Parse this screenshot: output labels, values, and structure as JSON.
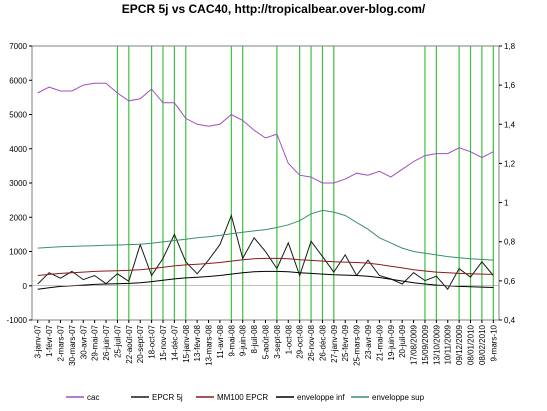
{
  "chart_data": {
    "type": "line",
    "title": "EPCR 5j vs CAC40, http://tropicalbear.over-blog.com/",
    "ylim": [
      -1000,
      7000
    ],
    "yticks": [
      -1000,
      0,
      1000,
      2000,
      3000,
      4000,
      5000,
      6000,
      7000
    ],
    "ytick_labels": [
      "-1000",
      "0",
      "1000",
      "2000",
      "3000",
      "4000",
      "5000",
      "6000",
      "7000"
    ],
    "y2lim": [
      0.4,
      1.8
    ],
    "y2ticks": [
      0.4,
      0.6,
      0.8,
      1.0,
      1.2,
      1.4,
      1.6,
      1.8
    ],
    "y2tick_labels": [
      "0,4",
      "0,6",
      "0,8",
      "1",
      "1,2",
      "1,4",
      "1,6",
      "1,8"
    ],
    "categories": [
      "3-janv-07",
      "1-févr-07",
      "2-mars-07",
      "30-mars-07",
      "30-avr-07",
      "29-mai-07",
      "26-juin-07",
      "25-juil-07",
      "22-août-07",
      "20-sept-07",
      "18-oct-07",
      "15-nov-07",
      "14-déc-07",
      "15-janv-08",
      "13-févr-08",
      "13-mars-08",
      "11-avr-08",
      "9-mai-08",
      "9-juin-08",
      "8-juil-08",
      "5-août-08",
      "3-sept-08",
      "1-oct-08",
      "29-oct-08",
      "26-nov-08",
      "26-déc-08",
      "27-janv-09",
      "25-févr-09",
      "25-mars-09",
      "23-avr-09",
      "21-mai-09",
      "19-juin-09",
      "20-juil-09",
      "17/08/2009",
      "15/09/2009",
      "13/10/2009",
      "10/11/2009",
      "09/12/2009",
      "08/01/2010",
      "08/02/2010",
      "9-mars-10"
    ],
    "series": [
      {
        "name": "cac",
        "axis": "y2",
        "color": "#a04fc0",
        "values": [
          1.56,
          1.59,
          1.57,
          1.57,
          1.6,
          1.61,
          1.61,
          1.56,
          1.52,
          1.53,
          1.58,
          1.51,
          1.51,
          1.43,
          1.4,
          1.39,
          1.4,
          1.45,
          1.42,
          1.37,
          1.33,
          1.35,
          1.2,
          1.14,
          1.13,
          1.1,
          1.1,
          1.12,
          1.15,
          1.14,
          1.16,
          1.13,
          1.17,
          1.21,
          1.24,
          1.25,
          1.25,
          1.28,
          1.26,
          1.23,
          1.26
        ]
      },
      {
        "name": "EPCR 5j",
        "axis": "y",
        "color": "#1a1a1a",
        "values": [
          50,
          380,
          220,
          420,
          180,
          300,
          60,
          350,
          130,
          1200,
          300,
          800,
          1500,
          700,
          350,
          750,
          1200,
          2050,
          800,
          1400,
          1000,
          500,
          1250,
          300,
          1300,
          850,
          400,
          900,
          300,
          750,
          300,
          200,
          50,
          380,
          150,
          280,
          -100,
          500,
          250,
          700,
          300
        ]
      },
      {
        "name": "MM100 EPCR",
        "axis": "y",
        "color": "#8b1a1a",
        "values": [
          300,
          330,
          360,
          380,
          400,
          420,
          430,
          440,
          450,
          470,
          500,
          540,
          580,
          610,
          630,
          650,
          680,
          720,
          760,
          790,
          800,
          800,
          790,
          760,
          740,
          720,
          700,
          690,
          680,
          660,
          620,
          570,
          520,
          470,
          430,
          400,
          380,
          360,
          350,
          340,
          330
        ]
      },
      {
        "name": "enveloppe inf",
        "axis": "y",
        "color": "#000000",
        "values": [
          -100,
          -60,
          -20,
          0,
          20,
          40,
          50,
          60,
          70,
          90,
          120,
          160,
          200,
          230,
          250,
          270,
          300,
          340,
          380,
          410,
          420,
          420,
          410,
          380,
          360,
          340,
          320,
          310,
          300,
          280,
          240,
          190,
          140,
          90,
          50,
          20,
          0,
          -20,
          -30,
          -40,
          -50
        ]
      },
      {
        "name": "enveloppe sup",
        "axis": "y",
        "color": "#3c8f6e",
        "values": [
          1100,
          1120,
          1140,
          1150,
          1160,
          1170,
          1180,
          1190,
          1200,
          1210,
          1240,
          1280,
          1320,
          1360,
          1400,
          1430,
          1470,
          1520,
          1560,
          1600,
          1640,
          1700,
          1780,
          1900,
          2100,
          2200,
          2150,
          2050,
          1850,
          1650,
          1400,
          1250,
          1100,
          1000,
          950,
          900,
          850,
          820,
          790,
          770,
          750
        ]
      }
    ],
    "signal_lines_at": [
      "25-juil-07",
      "22-août-07",
      "18-oct-07",
      "15-nov-07",
      "14-déc-07",
      "15-janv-08",
      "9-mai-08",
      "9-juin-08",
      "3-sept-08",
      "29-oct-08",
      "26-nov-08",
      "26-déc-08",
      "27-janv-09",
      "15/09/2009",
      "13/10/2009",
      "09/12/2009",
      "08/01/2010",
      "08/02/2010",
      "9-mars-10"
    ],
    "signal_color": "#3fbf3f",
    "legend_position": "bottom"
  }
}
